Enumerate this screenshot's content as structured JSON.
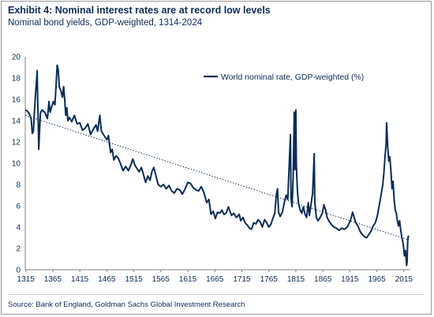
{
  "title": "Exhibit 4: Nominal interest rates are at record low levels",
  "subtitle": "Nominal bond yields, GDP-weighted, 1314-2024",
  "source": "Source: Bank of England, Goldman Sachs Global Investment Research",
  "colors": {
    "series": "#0b2c57",
    "text": "#0b2c57",
    "axis": "#808080"
  },
  "chart_data": {
    "type": "line",
    "title": "",
    "xlabel": "",
    "ylabel": "",
    "xlim": [
      1314,
      2024
    ],
    "ylim": [
      0,
      20
    ],
    "x_ticks": [
      1315,
      1365,
      1415,
      1465,
      1515,
      1565,
      1615,
      1665,
      1715,
      1765,
      1815,
      1865,
      1915,
      1965,
      2015
    ],
    "y_ticks": [
      0,
      2,
      4,
      6,
      8,
      10,
      12,
      14,
      16,
      18,
      20
    ],
    "grid": false,
    "legend_position": "top-right",
    "series": [
      {
        "name": "World nominal rate, GDP-weighted (%)",
        "style": "solid",
        "points": [
          [
            1314,
            15.0
          ],
          [
            1318,
            14.9
          ],
          [
            1322,
            14.6
          ],
          [
            1325,
            14.2
          ],
          [
            1327,
            12.8
          ],
          [
            1329,
            13.0
          ],
          [
            1331,
            14.8
          ],
          [
            1333,
            16.5
          ],
          [
            1335,
            17.8
          ],
          [
            1336,
            18.7
          ],
          [
            1337,
            16.2
          ],
          [
            1338,
            14.0
          ],
          [
            1339,
            11.3
          ],
          [
            1340,
            12.5
          ],
          [
            1342,
            14.7
          ],
          [
            1345,
            15.0
          ],
          [
            1350,
            14.8
          ],
          [
            1355,
            14.2
          ],
          [
            1358,
            15.8
          ],
          [
            1360,
            14.8
          ],
          [
            1363,
            15.3
          ],
          [
            1366,
            15.8
          ],
          [
            1369,
            15.5
          ],
          [
            1371,
            17.2
          ],
          [
            1373,
            19.2
          ],
          [
            1375,
            18.8
          ],
          [
            1377,
            17.2
          ],
          [
            1380,
            16.8
          ],
          [
            1383,
            16.2
          ],
          [
            1385,
            17.2
          ],
          [
            1387,
            16.0
          ],
          [
            1389,
            14.5
          ],
          [
            1391,
            15.2
          ],
          [
            1393,
            14.0
          ],
          [
            1396,
            14.3
          ],
          [
            1400,
            13.9
          ],
          [
            1405,
            14.5
          ],
          [
            1410,
            13.7
          ],
          [
            1415,
            13.8
          ],
          [
            1420,
            13.1
          ],
          [
            1425,
            13.3
          ],
          [
            1430,
            13.7
          ],
          [
            1435,
            12.7
          ],
          [
            1440,
            13.2
          ],
          [
            1445,
            13.6
          ],
          [
            1448,
            13.0
          ],
          [
            1452,
            14.5
          ],
          [
            1455,
            13.0
          ],
          [
            1460,
            12.6
          ],
          [
            1465,
            12.2
          ],
          [
            1468,
            12.6
          ],
          [
            1472,
            11.0
          ],
          [
            1475,
            11.3
          ],
          [
            1478,
            10.3
          ],
          [
            1482,
            10.7
          ],
          [
            1486,
            10.5
          ],
          [
            1490,
            10.0
          ],
          [
            1495,
            9.3
          ],
          [
            1500,
            9.7
          ],
          [
            1505,
            9.3
          ],
          [
            1510,
            9.9
          ],
          [
            1513,
            10.4
          ],
          [
            1517,
            9.8
          ],
          [
            1521,
            9.5
          ],
          [
            1525,
            9.2
          ],
          [
            1529,
            9.6
          ],
          [
            1533,
            8.9
          ],
          [
            1537,
            8.2
          ],
          [
            1541,
            8.8
          ],
          [
            1545,
            8.4
          ],
          [
            1549,
            9.3
          ],
          [
            1552,
            9.6
          ],
          [
            1556,
            8.8
          ],
          [
            1560,
            8.0
          ],
          [
            1565,
            7.8
          ],
          [
            1570,
            8.0
          ],
          [
            1575,
            7.6
          ],
          [
            1580,
            7.9
          ],
          [
            1585,
            7.4
          ],
          [
            1590,
            7.2
          ],
          [
            1595,
            7.6
          ],
          [
            1600,
            7.5
          ],
          [
            1605,
            7.1
          ],
          [
            1610,
            7.6
          ],
          [
            1615,
            8.2
          ],
          [
            1620,
            8.1
          ],
          [
            1625,
            7.7
          ],
          [
            1630,
            7.5
          ],
          [
            1635,
            7.4
          ],
          [
            1640,
            7.8
          ],
          [
            1645,
            7.2
          ],
          [
            1650,
            6.3
          ],
          [
            1654,
            6.6
          ],
          [
            1658,
            5.2
          ],
          [
            1662,
            5.5
          ],
          [
            1666,
            4.8
          ],
          [
            1670,
            5.4
          ],
          [
            1674,
            5.3
          ],
          [
            1678,
            5.6
          ],
          [
            1682,
            5.2
          ],
          [
            1686,
            5.3
          ],
          [
            1690,
            5.9
          ],
          [
            1693,
            5.5
          ],
          [
            1696,
            5.1
          ],
          [
            1700,
            5.3
          ],
          [
            1705,
            4.9
          ],
          [
            1710,
            5.2
          ],
          [
            1713,
            4.6
          ],
          [
            1717,
            4.9
          ],
          [
            1721,
            4.4
          ],
          [
            1725,
            4.2
          ],
          [
            1729,
            3.9
          ],
          [
            1733,
            3.8
          ],
          [
            1737,
            4.4
          ],
          [
            1741,
            4.3
          ],
          [
            1745,
            4.7
          ],
          [
            1749,
            4.5
          ],
          [
            1753,
            4.0
          ],
          [
            1757,
            4.7
          ],
          [
            1761,
            4.4
          ],
          [
            1765,
            4.0
          ],
          [
            1769,
            4.3
          ],
          [
            1773,
            4.9
          ],
          [
            1776,
            5.3
          ],
          [
            1779,
            7.1
          ],
          [
            1781,
            7.6
          ],
          [
            1783,
            5.4
          ],
          [
            1786,
            5.0
          ],
          [
            1790,
            5.4
          ],
          [
            1794,
            6.4
          ],
          [
            1797,
            7.0
          ],
          [
            1800,
            6.6
          ],
          [
            1803,
            10.2
          ],
          [
            1805,
            12.7
          ],
          [
            1806,
            6.8
          ],
          [
            1808,
            5.9
          ],
          [
            1810,
            8.6
          ],
          [
            1812,
            14.8
          ],
          [
            1813,
            9.4
          ],
          [
            1814,
            12.4
          ],
          [
            1815,
            15.0
          ],
          [
            1816,
            9.7
          ],
          [
            1818,
            7.3
          ],
          [
            1820,
            6.2
          ],
          [
            1823,
            5.6
          ],
          [
            1826,
            5.3
          ],
          [
            1829,
            5.9
          ],
          [
            1832,
            5.2
          ],
          [
            1835,
            4.9
          ],
          [
            1838,
            6.3
          ],
          [
            1840,
            5.1
          ],
          [
            1843,
            6.1
          ],
          [
            1846,
            7.2
          ],
          [
            1849,
            10.9
          ],
          [
            1850,
            6.4
          ],
          [
            1853,
            4.9
          ],
          [
            1856,
            4.6
          ],
          [
            1860,
            4.9
          ],
          [
            1864,
            5.3
          ],
          [
            1867,
            6.1
          ],
          [
            1870,
            5.6
          ],
          [
            1873,
            4.9
          ],
          [
            1876,
            4.6
          ],
          [
            1880,
            4.3
          ],
          [
            1885,
            4.0
          ],
          [
            1890,
            3.9
          ],
          [
            1895,
            3.7
          ],
          [
            1900,
            3.9
          ],
          [
            1905,
            3.8
          ],
          [
            1910,
            4.0
          ],
          [
            1914,
            4.4
          ],
          [
            1917,
            4.8
          ],
          [
            1920,
            5.4
          ],
          [
            1923,
            4.9
          ],
          [
            1926,
            4.4
          ],
          [
            1930,
            4.1
          ],
          [
            1934,
            3.6
          ],
          [
            1938,
            3.3
          ],
          [
            1942,
            3.1
          ],
          [
            1946,
            3.0
          ],
          [
            1950,
            3.3
          ],
          [
            1954,
            3.6
          ],
          [
            1958,
            4.1
          ],
          [
            1962,
            4.4
          ],
          [
            1966,
            5.1
          ],
          [
            1970,
            6.2
          ],
          [
            1973,
            7.1
          ],
          [
            1976,
            8.0
          ],
          [
            1978,
            9.1
          ],
          [
            1980,
            10.6
          ],
          [
            1982,
            11.8
          ],
          [
            1983,
            13.8
          ],
          [
            1985,
            11.6
          ],
          [
            1987,
            10.2
          ],
          [
            1989,
            10.6
          ],
          [
            1991,
            9.3
          ],
          [
            1993,
            7.6
          ],
          [
            1995,
            8.3
          ],
          [
            1997,
            6.6
          ],
          [
            1999,
            5.6
          ],
          [
            2001,
            5.3
          ],
          [
            2003,
            4.6
          ],
          [
            2005,
            4.1
          ],
          [
            2007,
            4.6
          ],
          [
            2009,
            3.8
          ],
          [
            2011,
            3.1
          ],
          [
            2013,
            2.6
          ],
          [
            2015,
            1.9
          ],
          [
            2016,
            1.3
          ],
          [
            2017,
            1.6
          ],
          [
            2018,
            1.8
          ],
          [
            2019,
            1.1
          ],
          [
            2020,
            0.4
          ],
          [
            2021,
            0.7
          ],
          [
            2022,
            2.6
          ],
          [
            2023,
            3.1
          ],
          [
            2024,
            3.2
          ]
        ]
      },
      {
        "style": "dotted",
        "points": [
          [
            1314,
            14.5
          ],
          [
            2024,
            2.8
          ]
        ]
      }
    ]
  }
}
